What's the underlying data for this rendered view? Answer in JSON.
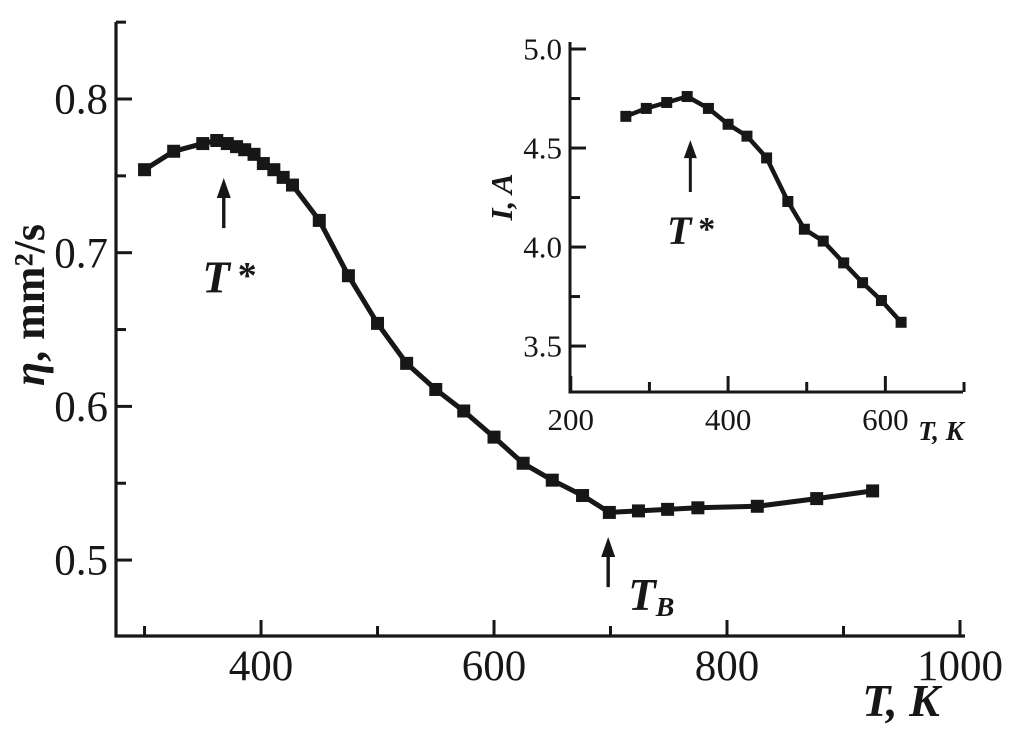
{
  "page": {
    "background": "#ffffff",
    "ink": "#171717"
  },
  "figure": {
    "description": "Temperature dependence of kinematic viscosity with inset plot of current vs temperature",
    "annotation_labels": [
      "T*",
      "TB"
    ]
  },
  "chart_data": [
    {
      "id": "main",
      "type": "line",
      "title": "",
      "xlabel": "T, K",
      "ylabel": "η, mm²/s",
      "xlim": [
        275.5,
        1004.3
      ],
      "ylim": [
        0.4506,
        0.8501
      ],
      "grid": false,
      "legend": null,
      "marker": "square",
      "x_major_ticks": [
        {
          "v": 400,
          "label": "400"
        },
        {
          "v": 600,
          "label": "600"
        },
        {
          "v": 800,
          "label": "800"
        },
        {
          "v": 1000,
          "label": "1000"
        }
      ],
      "x_minor_ticks": [
        300,
        500,
        700,
        900
      ],
      "y_major_ticks": [
        {
          "v": 0.5,
          "label": "0.5"
        },
        {
          "v": 0.6,
          "label": "0.6"
        },
        {
          "v": 0.7,
          "label": "0.7"
        },
        {
          "v": 0.8,
          "label": "0.8"
        }
      ],
      "y_minor_ticks": [
        0.55,
        0.65,
        0.75,
        0.85
      ],
      "series": [
        {
          "name": "kinematic viscosity η(T)",
          "x": [
            300,
            325,
            350,
            362,
            371,
            379,
            386,
            394,
            402,
            411,
            419,
            427,
            450,
            475,
            500,
            525,
            550,
            574,
            600,
            625,
            650,
            676,
            699,
            724,
            749,
            775,
            826,
            877,
            925
          ],
          "y": [
            0.754,
            0.766,
            0.771,
            0.773,
            0.771,
            0.769,
            0.767,
            0.764,
            0.758,
            0.754,
            0.749,
            0.744,
            0.721,
            0.685,
            0.654,
            0.628,
            0.611,
            0.597,
            0.58,
            0.563,
            0.552,
            0.542,
            0.531,
            0.532,
            0.533,
            0.534,
            0.535,
            0.54,
            0.545
          ]
        }
      ],
      "annotations": [
        {
          "id": "t-star",
          "text": "T",
          "sup": "*",
          "sub": "",
          "arrow": {
            "x": 368,
            "y_tip": 0.7486,
            "y_tail": 0.716
          },
          "label": {
            "x": 373,
            "y": 0.674
          }
        },
        {
          "id": "t-b",
          "text": "T",
          "sup": "",
          "sub": "B",
          "arrow": {
            "x": 698,
            "y_tip": 0.515,
            "y_tail": 0.4824
          },
          "label": {
            "x": 735,
            "y": 0.4675
          }
        }
      ]
    },
    {
      "id": "inset",
      "type": "line",
      "title": "",
      "xlabel": "T, K",
      "ylabel": "I, A",
      "xlim": [
        199,
        698.7
      ],
      "ylim": [
        3.268,
        5.0354
      ],
      "grid": false,
      "legend": null,
      "marker": "square",
      "x_major_ticks": [
        {
          "v": 200,
          "label": "200"
        },
        {
          "v": 400,
          "label": "400"
        },
        {
          "v": 600,
          "label": "600"
        }
      ],
      "x_minor_ticks": [
        300,
        500,
        700
      ],
      "y_major_ticks": [
        {
          "v": 3.5,
          "label": "3.5"
        },
        {
          "v": 4.0,
          "label": "4.0"
        },
        {
          "v": 4.5,
          "label": "4.5"
        },
        {
          "v": 5.0,
          "label": "5.0"
        }
      ],
      "y_minor_ticks": [
        3.75,
        4.25,
        4.75
      ],
      "series": [
        {
          "name": "current I(T)",
          "x": [
            270,
            296,
            322,
            348,
            375,
            400,
            424,
            449,
            476,
            497,
            521,
            547,
            571,
            595,
            620
          ],
          "y": [
            4.66,
            4.7,
            4.73,
            4.76,
            4.7,
            4.62,
            4.56,
            4.45,
            4.23,
            4.09,
            4.03,
            3.92,
            3.82,
            3.73,
            3.62
          ]
        }
      ],
      "annotations": [
        {
          "id": "t-star",
          "text": "T",
          "sup": "*",
          "sub": "",
          "arrow": {
            "x": 352,
            "y_tip": 4.54,
            "y_tail": 4.278
          },
          "label": {
            "x": 353,
            "y": 4.015
          }
        }
      ]
    }
  ]
}
